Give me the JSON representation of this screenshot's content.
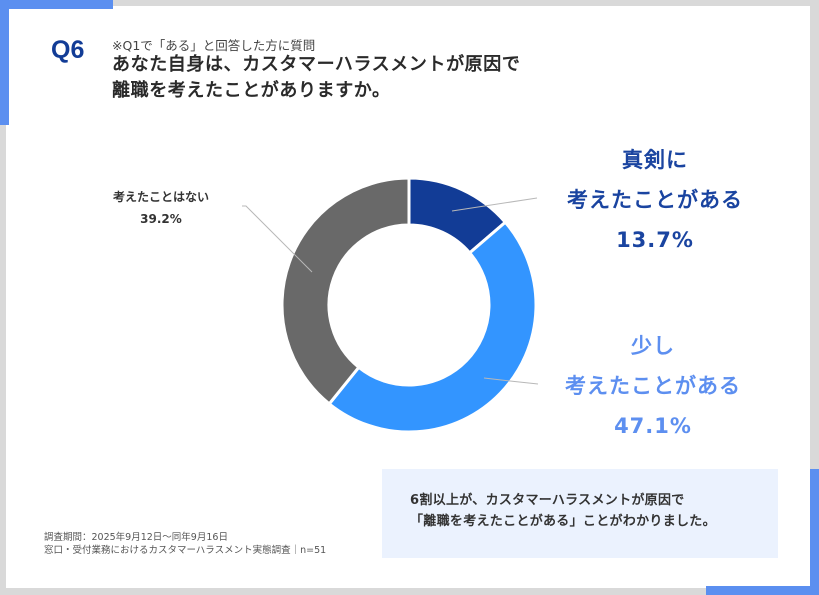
{
  "header": {
    "question_number": "Q6",
    "note": "※Q1で「ある」と回答した方に質問",
    "title_lines": [
      "あなた自身は、カスタマーハラスメントが原因で",
      "離職を考えたことがありますか。"
    ]
  },
  "labels": {
    "serious": {
      "line1": "真剣に",
      "line2": "考えたことがある",
      "value": "13.7%",
      "color": "#1a44a0"
    },
    "little": {
      "line1": "少し",
      "line2": "考えたことがある",
      "value": "47.1%",
      "color": "#5d8ff0"
    },
    "none": {
      "line1": "考えたことはない",
      "value": "39.2%",
      "color": "#333333"
    }
  },
  "summary": {
    "line1": "6割以上が、カスタマーハラスメントが原因で",
    "line2": "「離職を考えたことがある」ことがわかりました。"
  },
  "footnote": {
    "line1": "調査期間：2025年9月12日～同年9月16日",
    "line2": "窓口・受付業務におけるカスタマーハラスメント実態調査｜n=51"
  },
  "chart_data": {
    "type": "pie",
    "variant": "donut",
    "title": "あなた自身は、カスタマーハラスメントが原因で離職を考えたことがありますか。",
    "categories": [
      "真剣に考えたことがある",
      "少し考えたことがある",
      "考えたことはない"
    ],
    "values": [
      13.7,
      47.1,
      39.2
    ],
    "unit": "%",
    "colors": [
      "#123c96",
      "#3395ff",
      "#696969"
    ],
    "start_angle": "12 o'clock",
    "direction": "clockwise",
    "n": 51,
    "legend": "none (direct labels with leader lines)"
  }
}
